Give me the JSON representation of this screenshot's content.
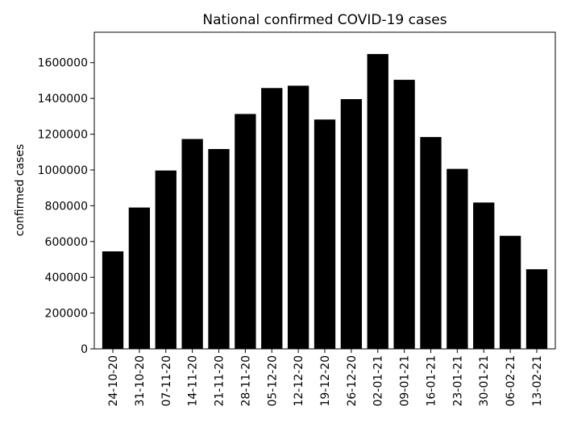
{
  "chart_data": {
    "type": "bar",
    "title": "National confirmed COVID-19 cases",
    "xlabel": "",
    "ylabel": "confirmed cases",
    "categories": [
      "24-10-20",
      "31-10-20",
      "07-11-20",
      "14-11-20",
      "21-11-20",
      "28-11-20",
      "05-12-20",
      "12-12-20",
      "19-12-20",
      "26-12-20",
      "02-01-21",
      "09-01-21",
      "16-01-21",
      "23-01-21",
      "30-01-21",
      "06-02-21",
      "13-02-21"
    ],
    "values": [
      545000,
      790000,
      997000,
      1173000,
      1117000,
      1313000,
      1458000,
      1471000,
      1282000,
      1396000,
      1648000,
      1504000,
      1184000,
      1006000,
      818000,
      632000,
      445000
    ],
    "ylim": [
      0,
      1770000
    ],
    "yticks": [
      0,
      200000,
      400000,
      600000,
      800000,
      1000000,
      1200000,
      1400000,
      1600000
    ],
    "bar_color": "#000000",
    "grid": false,
    "legend": "none"
  }
}
